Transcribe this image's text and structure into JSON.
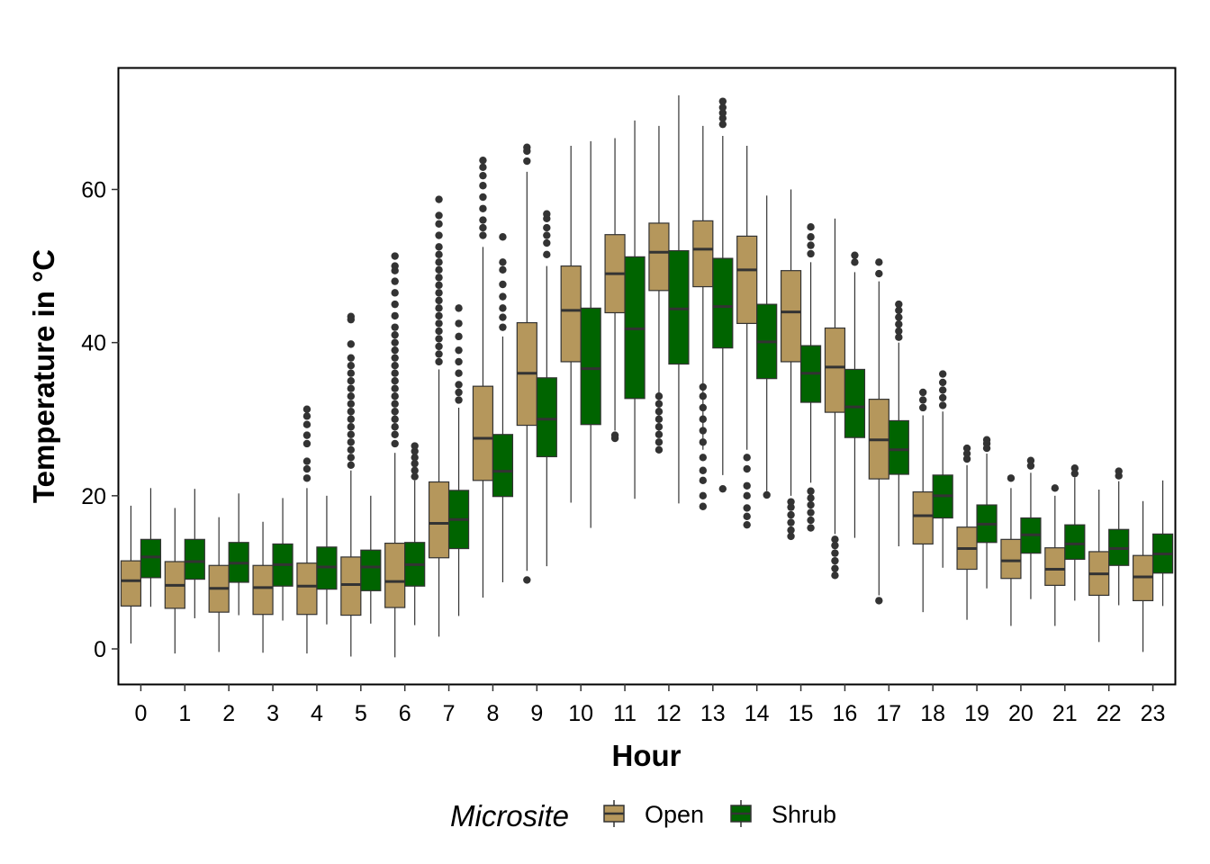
{
  "chart_data": {
    "type": "boxplot",
    "title": "",
    "xlabel": "Hour",
    "ylabel": "Temperature in °C",
    "ylim": [
      -4.5,
      75
    ],
    "yticks": [
      0,
      20,
      40,
      60
    ],
    "categories": [
      "0",
      "1",
      "2",
      "3",
      "4",
      "5",
      "6",
      "7",
      "8",
      "9",
      "10",
      "11",
      "12",
      "13",
      "14",
      "15",
      "16",
      "17",
      "18",
      "19",
      "20",
      "21",
      "22",
      "23"
    ],
    "grid": false,
    "legend": {
      "title": "Microsite",
      "position": "bottom"
    },
    "series": [
      {
        "name": "Open",
        "color": "#b5975c",
        "boxes": [
          {
            "min": 0.7,
            "q1": 5.6,
            "median": 8.9,
            "q3": 11.5,
            "max": 18.7,
            "outliers": []
          },
          {
            "min": -0.6,
            "q1": 5.3,
            "median": 8.3,
            "q3": 11.4,
            "max": 18.4,
            "outliers": []
          },
          {
            "min": -0.4,
            "q1": 4.8,
            "median": 7.9,
            "q3": 10.9,
            "max": 17.2,
            "outliers": []
          },
          {
            "min": -0.5,
            "q1": 4.5,
            "median": 8.0,
            "q3": 10.9,
            "max": 16.6,
            "outliers": []
          },
          {
            "min": -0.6,
            "q1": 4.5,
            "median": 8.2,
            "q3": 11.2,
            "max": 21.0,
            "outliers": [
              22.3,
              23.5,
              24.5,
              26.8,
              27.9,
              29.3,
              30.4,
              31.3
            ]
          },
          {
            "min": -1.0,
            "q1": 4.4,
            "median": 8.4,
            "q3": 12.0,
            "max": 23.3,
            "outliers": [
              24.0,
              25.0,
              26.0,
              27.0,
              28.0,
              29.0,
              30.0,
              31.0,
              32.0,
              33.0,
              34.0,
              35.0,
              36.0,
              37.0,
              38.0,
              39.8,
              43.0,
              43.4
            ]
          },
          {
            "min": -1.1,
            "q1": 5.4,
            "median": 8.8,
            "q3": 13.8,
            "max": 25.6,
            "outliers": [
              26.8,
              28.0,
              29.0,
              30.0,
              31.0,
              32.0,
              33.0,
              34.0,
              35.0,
              36.0,
              37.0,
              38.0,
              39.0,
              40.0,
              41.0,
              42.0,
              43.5,
              45.0,
              46.5,
              48.0,
              49.4,
              50.0,
              51.3
            ]
          },
          {
            "min": 1.6,
            "q1": 11.9,
            "median": 16.4,
            "q3": 21.8,
            "max": 36.5,
            "outliers": [
              37.5,
              38.5,
              39.5,
              40.5,
              41.5,
              42.5,
              43.5,
              44.5,
              45.5,
              46.5,
              47.5,
              48.5,
              49.5,
              50.5,
              51.5,
              52.5,
              54.0,
              55.5,
              56.6,
              58.7
            ]
          },
          {
            "min": 6.7,
            "q1": 22.0,
            "median": 27.5,
            "q3": 34.3,
            "max": 52.5,
            "outliers": [
              54.0,
              55.0,
              56.0,
              57.5,
              59.0,
              60.5,
              61.8,
              62.9,
              63.8
            ]
          },
          {
            "min": 10.2,
            "q1": 29.2,
            "median": 36.0,
            "q3": 42.6,
            "max": 62.3,
            "outliers": [
              9.0,
              63.7,
              65.0,
              65.5
            ]
          },
          {
            "min": 19.1,
            "q1": 37.5,
            "median": 44.2,
            "q3": 50.0,
            "max": 65.7,
            "outliers": []
          },
          {
            "min": 28.5,
            "q1": 43.9,
            "median": 49.0,
            "q3": 54.1,
            "max": 66.7,
            "outliers": [
              27.5,
              27.9
            ]
          },
          {
            "min": 28.0,
            "q1": 46.8,
            "median": 51.8,
            "q3": 55.6,
            "max": 68.3,
            "outliers": [
              26.0,
              27.0,
              28.0,
              29.0,
              30.0,
              31.0,
              32.0,
              33.0
            ]
          },
          {
            "min": 26.0,
            "q1": 47.3,
            "median": 52.2,
            "q3": 55.9,
            "max": 68.3,
            "outliers": [
              18.6,
              20.0,
              22.0,
              23.3,
              25.0,
              27.0,
              28.5,
              30.0,
              31.5,
              33.0,
              34.2
            ]
          },
          {
            "min": 26.0,
            "q1": 42.5,
            "median": 49.5,
            "q3": 53.9,
            "max": 65.7,
            "outliers": [
              16.2,
              17.3,
              18.4,
              20.0,
              21.3,
              23.5,
              25.0
            ]
          },
          {
            "min": 20.0,
            "q1": 37.5,
            "median": 44.0,
            "q3": 49.4,
            "max": 60.0,
            "outliers": [
              14.7,
              15.5,
              16.5,
              17.5,
              18.5,
              19.2
            ]
          },
          {
            "min": 15.0,
            "q1": 30.9,
            "median": 36.8,
            "q3": 41.9,
            "max": 56.2,
            "outliers": [
              9.6,
              10.5,
              11.5,
              12.5,
              13.5,
              14.3
            ]
          },
          {
            "min": 7.0,
            "q1": 22.2,
            "median": 27.3,
            "q3": 32.6,
            "max": 48.0,
            "outliers": [
              6.3,
              49.0,
              50.5
            ]
          },
          {
            "min": 4.8,
            "q1": 13.7,
            "median": 17.4,
            "q3": 20.5,
            "max": 30.5,
            "outliers": [
              31.5,
              32.5,
              33.5
            ]
          },
          {
            "min": 3.8,
            "q1": 10.4,
            "median": 13.1,
            "q3": 15.9,
            "max": 24.0,
            "outliers": [
              24.8,
              25.5,
              26.2
            ]
          },
          {
            "min": 3.0,
            "q1": 9.2,
            "median": 11.5,
            "q3": 14.3,
            "max": 21.0,
            "outliers": [
              22.3
            ]
          },
          {
            "min": 3.0,
            "q1": 8.3,
            "median": 10.4,
            "q3": 13.2,
            "max": 20.0,
            "outliers": [
              21.0
            ]
          },
          {
            "min": 0.9,
            "q1": 7.0,
            "median": 9.8,
            "q3": 12.7,
            "max": 20.8,
            "outliers": []
          },
          {
            "min": -0.4,
            "q1": 6.3,
            "median": 9.4,
            "q3": 12.2,
            "max": 19.3,
            "outliers": []
          }
        ]
      },
      {
        "name": "Shrub",
        "color": "#006400",
        "boxes": [
          {
            "min": 5.5,
            "q1": 9.3,
            "median": 12.0,
            "q3": 14.3,
            "max": 21.0,
            "outliers": []
          },
          {
            "min": 4.0,
            "q1": 9.1,
            "median": 11.4,
            "q3": 14.3,
            "max": 20.9,
            "outliers": []
          },
          {
            "min": 4.4,
            "q1": 8.7,
            "median": 11.2,
            "q3": 13.9,
            "max": 20.3,
            "outliers": []
          },
          {
            "min": 3.7,
            "q1": 8.2,
            "median": 11.0,
            "q3": 13.7,
            "max": 19.7,
            "outliers": []
          },
          {
            "min": 3.2,
            "q1": 7.8,
            "median": 10.7,
            "q3": 13.3,
            "max": 20.0,
            "outliers": []
          },
          {
            "min": 3.3,
            "q1": 7.6,
            "median": 10.7,
            "q3": 12.9,
            "max": 20.0,
            "outliers": []
          },
          {
            "min": 3.1,
            "q1": 8.2,
            "median": 11.0,
            "q3": 13.9,
            "max": 22.0,
            "outliers": [
              22.5,
              23.3,
              24.2,
              25.0,
              25.8,
              26.5
            ]
          },
          {
            "min": 4.3,
            "q1": 13.1,
            "median": 16.9,
            "q3": 20.7,
            "max": 31.5,
            "outliers": [
              32.5,
              33.5,
              34.5,
              36.0,
              37.5,
              39.0,
              40.8,
              42.5,
              44.5
            ]
          },
          {
            "min": 8.7,
            "q1": 19.9,
            "median": 23.2,
            "q3": 28.0,
            "max": 40.8,
            "outliers": [
              42.0,
              43.3,
              44.5,
              46.0,
              47.6,
              49.5,
              50.5,
              53.8
            ]
          },
          {
            "min": 10.8,
            "q1": 25.1,
            "median": 30.0,
            "q3": 35.4,
            "max": 50.0,
            "outliers": [
              51.5,
              53.0,
              54.0,
              55.0,
              56.2,
              56.8
            ]
          },
          {
            "min": 15.8,
            "q1": 29.3,
            "median": 36.6,
            "q3": 44.5,
            "max": 66.3,
            "outliers": []
          },
          {
            "min": 19.6,
            "q1": 32.7,
            "median": 41.8,
            "q3": 51.2,
            "max": 69.0,
            "outliers": []
          },
          {
            "min": 19.0,
            "q1": 37.2,
            "median": 44.4,
            "q3": 52.0,
            "max": 72.3,
            "outliers": []
          },
          {
            "min": 22.7,
            "q1": 39.3,
            "median": 44.7,
            "q3": 51.0,
            "max": 67.0,
            "outliers": [
              20.9,
              68.5,
              69.3,
              70.0,
              70.7,
              71.5
            ]
          },
          {
            "min": 20.6,
            "q1": 35.3,
            "median": 40.1,
            "q3": 45.0,
            "max": 59.2,
            "outliers": [
              20.1
            ]
          },
          {
            "min": 21.7,
            "q1": 32.2,
            "median": 36.0,
            "q3": 39.6,
            "max": 50.5,
            "outliers": [
              15.8,
              16.8,
              17.8,
              18.8,
              19.7,
              20.6,
              51.6,
              52.7,
              53.8,
              55.1
            ]
          },
          {
            "min": 14.5,
            "q1": 27.6,
            "median": 31.6,
            "q3": 36.5,
            "max": 49.2,
            "outliers": [
              50.5,
              51.4
            ]
          },
          {
            "min": 13.4,
            "q1": 22.8,
            "median": 26.0,
            "q3": 29.8,
            "max": 40.0,
            "outliers": [
              40.7,
              41.5,
              42.4,
              43.3,
              44.2,
              45.0
            ]
          },
          {
            "min": 10.6,
            "q1": 17.1,
            "median": 20.0,
            "q3": 22.7,
            "max": 31.0,
            "outliers": [
              31.8,
              32.8,
              33.8,
              34.8,
              35.9
            ]
          },
          {
            "min": 7.9,
            "q1": 13.9,
            "median": 16.3,
            "q3": 18.8,
            "max": 25.5,
            "outliers": [
              26.2,
              26.8,
              27.3
            ]
          },
          {
            "min": 6.5,
            "q1": 12.5,
            "median": 14.9,
            "q3": 17.1,
            "max": 23.0,
            "outliers": [
              23.9,
              24.6
            ]
          },
          {
            "min": 6.3,
            "q1": 11.7,
            "median": 13.7,
            "q3": 16.2,
            "max": 22.4,
            "outliers": [
              22.9,
              23.6
            ]
          },
          {
            "min": 5.7,
            "q1": 10.9,
            "median": 13.1,
            "q3": 15.6,
            "max": 21.9,
            "outliers": [
              22.6,
              23.2
            ]
          },
          {
            "min": 5.6,
            "q1": 9.9,
            "median": 12.4,
            "q3": 15.0,
            "max": 22.0,
            "outliers": []
          }
        ]
      }
    ]
  }
}
